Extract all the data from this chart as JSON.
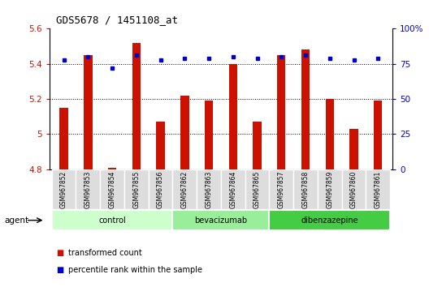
{
  "title": "GDS5678 / 1451108_at",
  "samples": [
    "GSM967852",
    "GSM967853",
    "GSM967854",
    "GSM967855",
    "GSM967856",
    "GSM967862",
    "GSM967863",
    "GSM967864",
    "GSM967865",
    "GSM967857",
    "GSM967858",
    "GSM967859",
    "GSM967860",
    "GSM967861"
  ],
  "transformed_count": [
    5.15,
    5.45,
    4.81,
    5.52,
    5.07,
    5.22,
    5.19,
    5.4,
    5.07,
    5.45,
    5.48,
    5.2,
    5.03,
    5.19
  ],
  "percentile_rank": [
    78,
    80,
    72,
    81,
    78,
    79,
    79,
    80,
    79,
    80,
    81,
    79,
    78,
    79
  ],
  "groups": [
    {
      "name": "control",
      "start": 0,
      "end": 5,
      "color": "#ccffcc"
    },
    {
      "name": "bevacizumab",
      "start": 5,
      "end": 9,
      "color": "#99ee99"
    },
    {
      "name": "dibenzazepine",
      "start": 9,
      "end": 14,
      "color": "#44cc44"
    }
  ],
  "bar_color": "#cc1100",
  "dot_color": "#0000cc",
  "ylim_left": [
    4.8,
    5.6
  ],
  "ylim_right": [
    0,
    100
  ],
  "yticks_left": [
    4.8,
    5.0,
    5.2,
    5.4,
    5.6
  ],
  "yticks_right": [
    0,
    25,
    50,
    75,
    100
  ],
  "ytick_labels_left": [
    "4.8",
    "5",
    "5.2",
    "5.4",
    "5.6"
  ],
  "ytick_labels_right": [
    "0",
    "25",
    "50",
    "75",
    "100%"
  ],
  "agent_label": "agent",
  "legend_bar_label": "transformed count",
  "legend_dot_label": "percentile rank within the sample",
  "background_color": "#ffffff",
  "plot_bg_color": "#ffffff",
  "sample_box_color": "#dddddd",
  "bar_width": 0.35
}
